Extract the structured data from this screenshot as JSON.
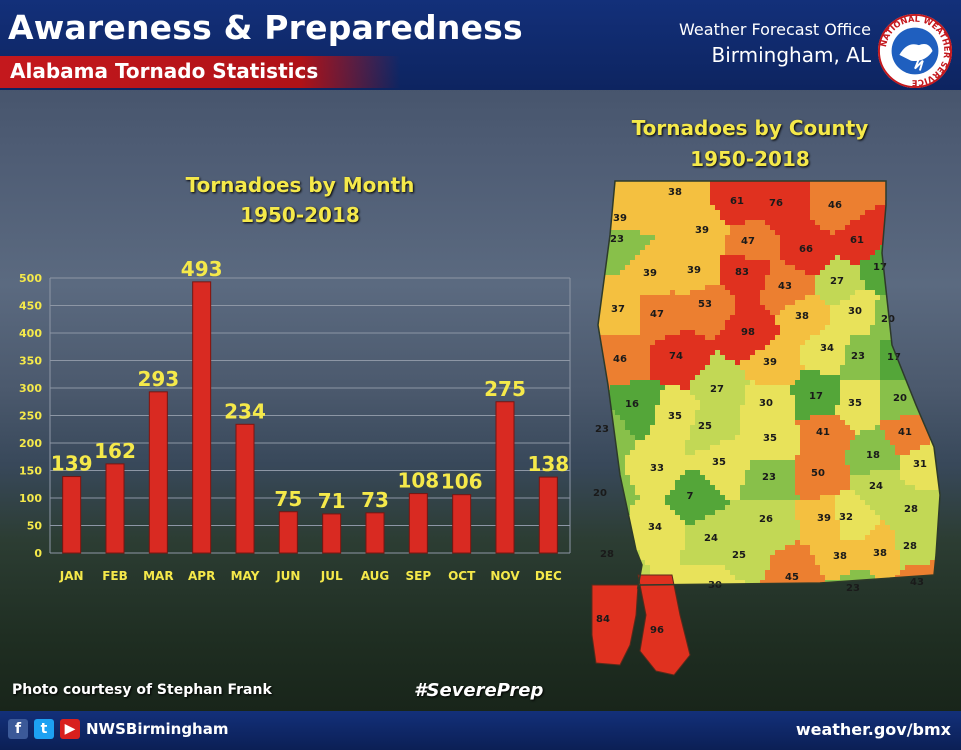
{
  "header": {
    "title": "Awareness & Preparedness",
    "subtitle": "Alabama Tornado Statistics",
    "office_line1": "Weather Forecast Office",
    "office_line2": "Birmingham, AL",
    "logo_text": "NATIONAL WEATHER SERVICE"
  },
  "chart_data": {
    "type": "bar",
    "title": "Tornadoes by Month",
    "subtitle": "1950-2018",
    "categories": [
      "JAN",
      "FEB",
      "MAR",
      "APR",
      "MAY",
      "JUN",
      "JUL",
      "AUG",
      "SEP",
      "OCT",
      "NOV",
      "DEC"
    ],
    "values": [
      139,
      162,
      293,
      493,
      234,
      75,
      71,
      73,
      108,
      106,
      275,
      138
    ],
    "yticks": [
      0,
      50,
      100,
      150,
      200,
      250,
      300,
      350,
      400,
      450,
      500
    ],
    "ylim": [
      0,
      500
    ],
    "grid": true,
    "bar_color": "#d92a22",
    "label_color": "#f5e94a"
  },
  "map": {
    "title": "Tornadoes by County",
    "subtitle": "1950-2018",
    "county_counts": [
      38,
      61,
      76,
      46,
      39,
      39,
      23,
      47,
      66,
      61,
      39,
      39,
      83,
      17,
      43,
      27,
      37,
      47,
      53,
      98,
      38,
      30,
      20,
      46,
      74,
      39,
      34,
      23,
      17,
      16,
      27,
      30,
      17,
      35,
      20,
      35,
      25,
      35,
      41,
      23,
      41,
      18,
      31,
      33,
      35,
      50,
      23,
      24,
      20,
      7,
      28,
      26,
      39,
      32,
      34,
      24,
      28,
      25,
      38,
      38,
      28,
      30,
      45,
      23,
      43,
      84,
      96
    ]
  },
  "footer": {
    "photo_credit": "Photo courtesy of Stephan Frank",
    "hashtag": "#SeverePrep",
    "social_handle": "NWSBirmingham",
    "website": "weather.gov/bmx"
  }
}
